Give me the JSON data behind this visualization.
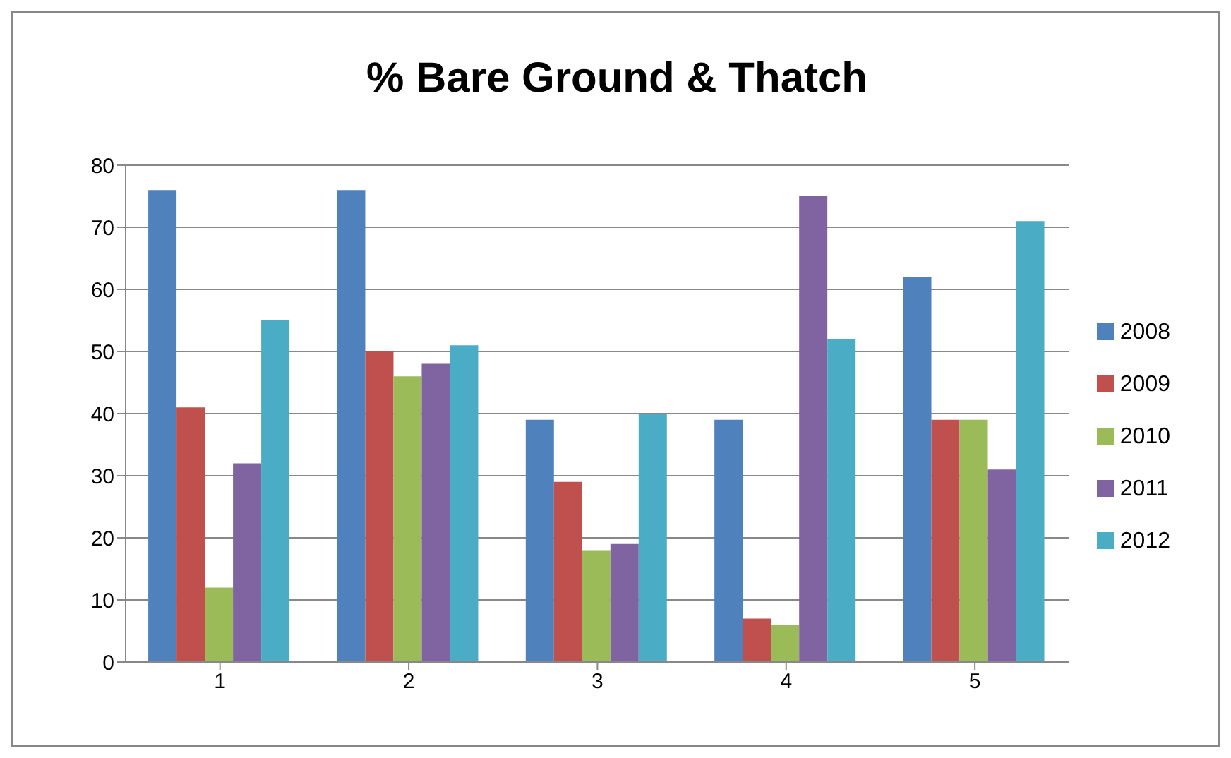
{
  "chart_data": {
    "type": "bar",
    "title": "% Bare Ground & Thatch",
    "categories": [
      "1",
      "2",
      "3",
      "4",
      "5"
    ],
    "series": [
      {
        "name": "2008",
        "color": "#4f81bd",
        "values": [
          76,
          76,
          39,
          39,
          62
        ]
      },
      {
        "name": "2009",
        "color": "#c0504d",
        "values": [
          41,
          50,
          29,
          7,
          39
        ]
      },
      {
        "name": "2010",
        "color": "#9bbb59",
        "values": [
          12,
          46,
          18,
          6,
          39
        ]
      },
      {
        "name": "2011",
        "color": "#8064a2",
        "values": [
          32,
          48,
          19,
          75,
          31
        ]
      },
      {
        "name": "2012",
        "color": "#4bacc6",
        "values": [
          55,
          51,
          40,
          52,
          71
        ]
      }
    ],
    "ylim": [
      0,
      80
    ],
    "yticks": [
      0,
      10,
      20,
      30,
      40,
      50,
      60,
      70,
      80
    ],
    "grid": "y",
    "legend": "right"
  }
}
